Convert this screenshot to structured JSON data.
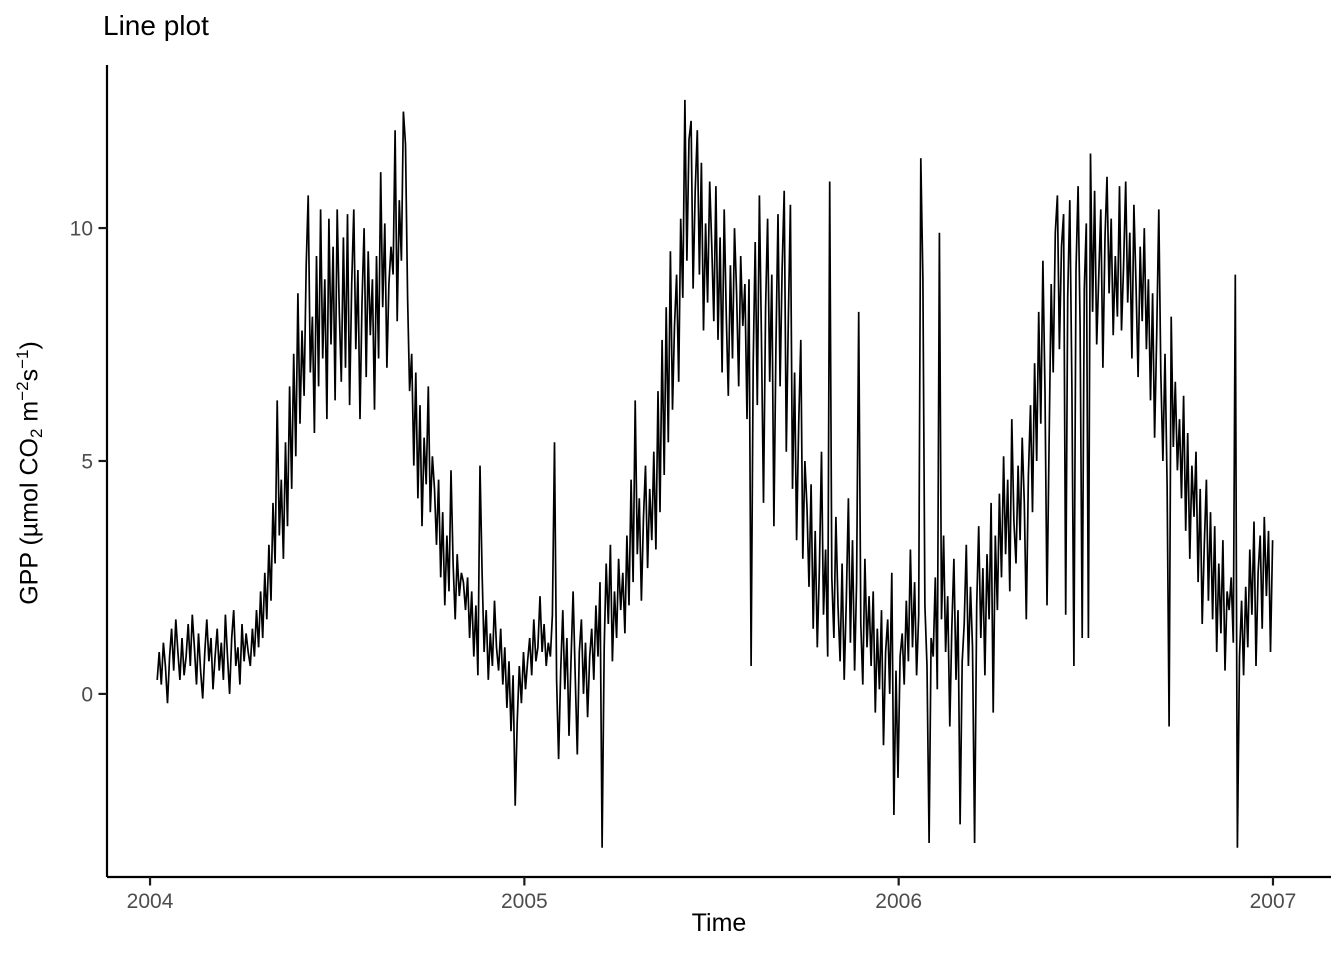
{
  "title": "Line plot",
  "chart_data": {
    "type": "line",
    "title": "Line plot",
    "xlabel": "Time",
    "ylabel": "GPP (µmol CO2 m−2s−1)",
    "ylabel_parts": [
      {
        "text": "GPP (µmol CO",
        "style": "normal"
      },
      {
        "text": "2",
        "style": "sub"
      },
      {
        "text": " m",
        "style": "normal"
      },
      {
        "text": "−2",
        "style": "sup"
      },
      {
        "text": "s",
        "style": "normal"
      },
      {
        "text": "−1",
        "style": "sup"
      },
      {
        "text": ")",
        "style": "normal"
      }
    ],
    "x_ticks": [
      2004,
      2005,
      2006,
      2007
    ],
    "x_tick_labels": [
      "2004",
      "2005",
      "2006",
      "2007"
    ],
    "y_ticks": [
      0,
      5,
      10
    ],
    "y_tick_labels": [
      "0",
      "5",
      "10"
    ],
    "xlim": [
      2003.885,
      2007.155
    ],
    "ylim": [
      -3.93,
      13.5
    ],
    "grid": false,
    "legend": "none",
    "line_color": "#000000",
    "axis_color": "#000000",
    "tick_label_color": "#4d4d4d",
    "series": [
      {
        "name": "GPP",
        "x_start": 2004.019,
        "x_step_years": 0.0055287,
        "values": [
          0.3,
          0.9,
          0.2,
          1.1,
          0.6,
          -0.2,
          0.8,
          1.4,
          0.5,
          1.6,
          0.9,
          0.3,
          1.2,
          0.4,
          0.8,
          1.5,
          0.6,
          1.7,
          1.0,
          0.2,
          1.3,
          0.5,
          -0.1,
          0.9,
          1.6,
          0.7,
          1.2,
          0.1,
          0.8,
          1.4,
          0.5,
          1.1,
          0.3,
          1.7,
          0.8,
          0.0,
          1.2,
          1.8,
          0.6,
          1.0,
          0.2,
          1.5,
          0.7,
          1.3,
          0.9,
          0.6,
          1.4,
          0.8,
          1.8,
          1.0,
          2.2,
          1.2,
          2.6,
          1.6,
          3.2,
          2.0,
          4.1,
          2.8,
          6.3,
          3.4,
          4.6,
          2.9,
          5.4,
          3.6,
          6.6,
          4.4,
          7.3,
          5.1,
          8.6,
          5.8,
          7.8,
          6.4,
          9.2,
          10.7,
          6.9,
          8.1,
          5.6,
          9.4,
          6.6,
          10.4,
          7.2,
          8.9,
          5.9,
          10.2,
          7.5,
          9.6,
          6.3,
          10.4,
          8.2,
          6.7,
          9.8,
          7.0,
          10.3,
          6.2,
          8.8,
          10.4,
          7.4,
          9.1,
          5.9,
          8.4,
          10.0,
          6.8,
          9.5,
          7.7,
          8.9,
          6.1,
          9.4,
          7.2,
          11.2,
          8.3,
          10.1,
          7.0,
          8.8,
          9.6,
          9.0,
          12.1,
          8.0,
          10.6,
          9.3,
          12.5,
          11.8,
          8.5,
          6.5,
          7.3,
          4.9,
          6.9,
          4.2,
          6.2,
          3.6,
          5.5,
          4.5,
          6.6,
          3.9,
          5.1,
          4.4,
          3.2,
          4.6,
          2.5,
          3.9,
          1.9,
          3.4,
          2.2,
          4.8,
          2.8,
          1.6,
          3.0,
          2.1,
          2.6,
          2.4,
          1.8,
          2.5,
          1.2,
          2.2,
          0.8,
          1.9,
          0.4,
          4.9,
          2.6,
          0.9,
          1.8,
          0.3,
          1.3,
          0.6,
          2.0,
          1.0,
          0.5,
          1.4,
          0.2,
          1.0,
          -0.3,
          0.7,
          -0.8,
          0.4,
          -2.4,
          -0.6,
          0.6,
          -0.2,
          0.9,
          0.1,
          0.7,
          1.2,
          0.4,
          1.6,
          0.7,
          1.0,
          2.1,
          0.9,
          1.5,
          0.6,
          1.1,
          0.8,
          1.7,
          5.4,
          0.3,
          -1.4,
          0.5,
          1.8,
          0.1,
          1.2,
          -0.9,
          0.7,
          2.2,
          0.4,
          -1.3,
          0.9,
          1.6,
          0.0,
          1.1,
          -0.5,
          0.8,
          1.4,
          0.3,
          1.9,
          0.8,
          2.4,
          -3.3,
          1.0,
          2.8,
          1.5,
          3.2,
          0.7,
          2.2,
          1.2,
          2.9,
          1.8,
          2.6,
          1.3,
          3.4,
          1.9,
          4.6,
          2.4,
          6.3,
          3.0,
          4.2,
          2.0,
          3.8,
          4.9,
          2.7,
          4.4,
          3.3,
          5.2,
          3.1,
          6.5,
          3.9,
          7.6,
          4.7,
          8.3,
          5.4,
          9.5,
          6.1,
          7.9,
          9.0,
          6.7,
          10.2,
          8.5,
          12.75,
          9.3,
          11.9,
          12.3,
          8.7,
          10.8,
          12.1,
          9.0,
          11.4,
          7.8,
          10.1,
          8.4,
          11.0,
          9.6,
          8.0,
          10.9,
          7.6,
          9.8,
          6.9,
          10.4,
          8.1,
          6.4,
          9.2,
          7.2,
          10.0,
          8.6,
          6.6,
          9.4,
          7.9,
          8.8,
          5.9,
          8.9,
          0.6,
          7.1,
          9.7,
          6.2,
          10.7,
          7.7,
          4.1,
          8.3,
          10.2,
          6.7,
          9.0,
          3.6,
          7.4,
          10.3,
          6.6,
          9.1,
          10.8,
          5.2,
          8.0,
          10.5,
          4.4,
          6.9,
          3.3,
          5.8,
          7.6,
          2.9,
          5.0,
          4.0,
          2.3,
          4.5,
          1.4,
          3.5,
          1.0,
          2.7,
          5.2,
          1.7,
          3.1,
          0.8,
          11.0,
          2.5,
          1.2,
          3.8,
          1.9,
          0.7,
          2.8,
          0.3,
          2.0,
          4.2,
          1.1,
          3.3,
          0.5,
          2.4,
          8.2,
          1.5,
          0.2,
          2.9,
          1.0,
          2.1,
          0.6,
          2.2,
          -0.4,
          1.4,
          0.1,
          1.8,
          -1.1,
          0.9,
          1.6,
          0.0,
          2.6,
          -2.6,
          0.5,
          -1.8,
          0.8,
          1.3,
          0.2,
          2.0,
          0.7,
          3.1,
          1.0,
          2.4,
          0.4,
          1.7,
          11.5,
          8.9,
          1.9,
          0.6,
          -3.2,
          1.2,
          0.8,
          2.5,
          0.1,
          9.9,
          1.6,
          3.4,
          0.9,
          2.1,
          -0.7,
          1.4,
          2.9,
          0.3,
          1.8,
          -2.8,
          0.7,
          1.5,
          3.2,
          0.6,
          2.3,
          1.0,
          -3.2,
          1.9,
          3.6,
          1.2,
          2.7,
          0.4,
          3.0,
          1.6,
          4.1,
          -0.4,
          3.4,
          1.8,
          4.3,
          2.5,
          5.1,
          3.0,
          4.6,
          2.2,
          5.9,
          3.7,
          2.8,
          4.9,
          3.3,
          5.5,
          4.1,
          1.6,
          4.7,
          6.2,
          3.9,
          7.1,
          5.0,
          8.2,
          5.8,
          9.3,
          6.5,
          1.9,
          5.4,
          8.8,
          6.9,
          9.9,
          10.7,
          7.4,
          9.6,
          10.3,
          1.7,
          8.5,
          10.6,
          6.6,
          0.6,
          9.1,
          10.9,
          7.9,
          1.2,
          8.7,
          10.1,
          1.2,
          11.6,
          8.2,
          10.8,
          7.5,
          9.0,
          10.4,
          7.0,
          9.8,
          11.1,
          8.6,
          10.2,
          7.7,
          9.4,
          8.1,
          10.9,
          7.8,
          9.2,
          11.0,
          8.4,
          9.9,
          7.2,
          10.5,
          8.8,
          6.8,
          9.6,
          8.0,
          10.0,
          7.4,
          8.9,
          6.3,
          8.6,
          5.5,
          7.7,
          10.4,
          6.9,
          5.0,
          7.3,
          4.5,
          -0.7,
          8.1,
          5.3,
          6.7,
          4.8,
          5.9,
          4.2,
          6.4,
          3.5,
          5.6,
          2.9,
          4.9,
          3.8,
          5.2,
          2.4,
          4.4,
          1.5,
          3.2,
          4.6,
          2.0,
          3.9,
          1.6,
          3.6,
          0.9,
          2.8,
          1.3,
          3.3,
          0.5,
          2.2,
          1.8,
          2.5,
          1.1,
          9.0,
          -3.3,
          0.8,
          2.0,
          0.4,
          2.3,
          1.0,
          3.1,
          1.7,
          3.7,
          0.6,
          2.6,
          3.4,
          1.4,
          3.8,
          2.1,
          3.5,
          0.9,
          3.3
        ]
      }
    ]
  }
}
